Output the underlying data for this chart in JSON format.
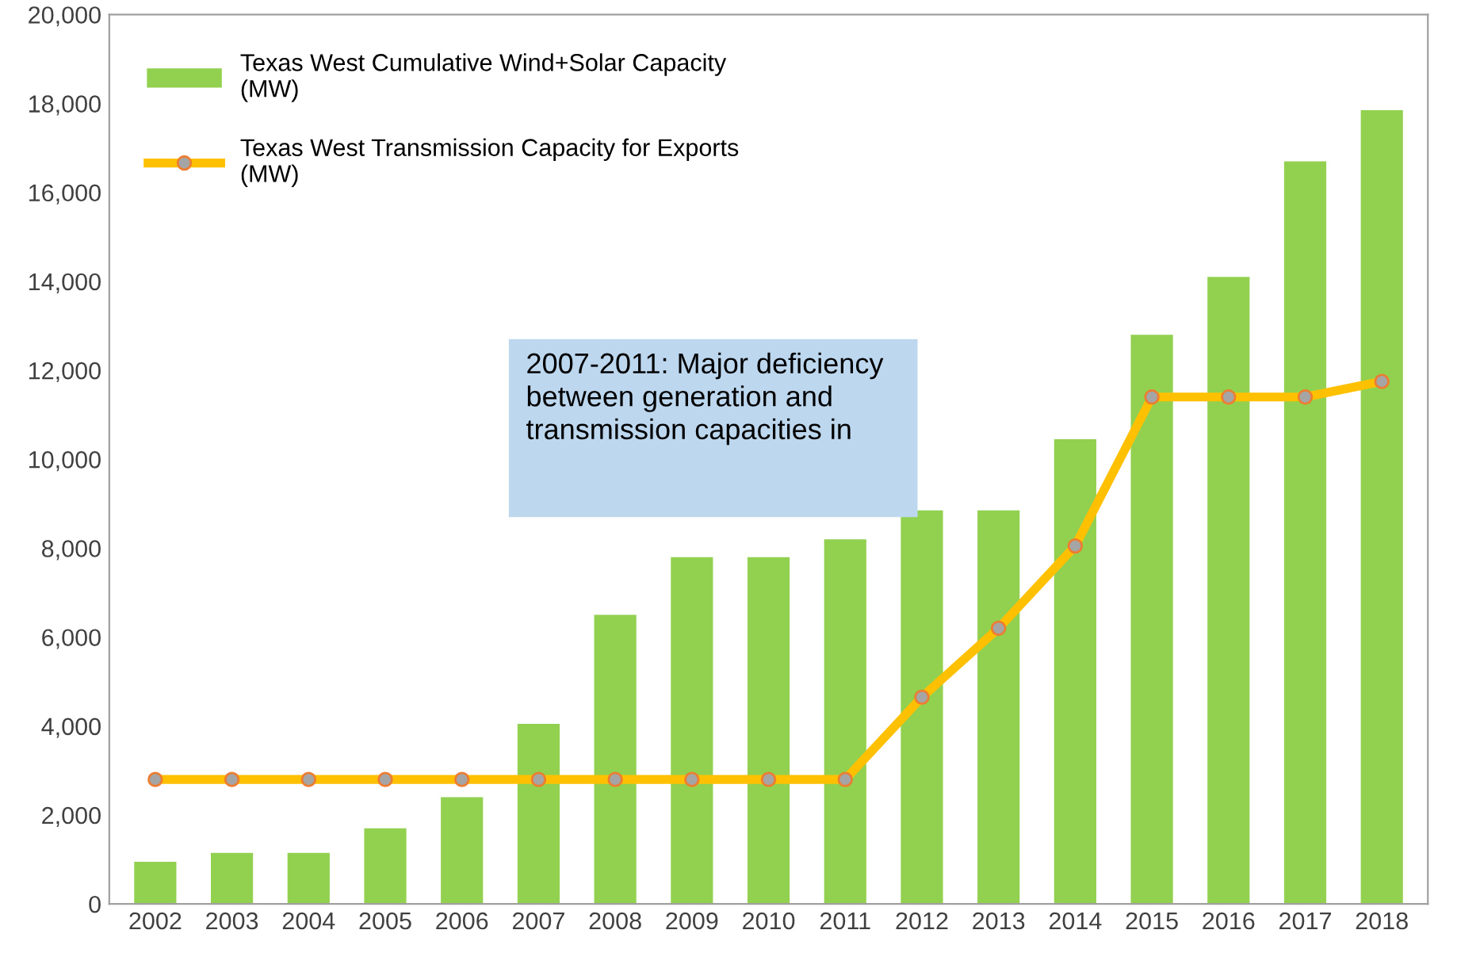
{
  "chart_data": {
    "type": "bar",
    "categories": [
      "2002",
      "2003",
      "2004",
      "2005",
      "2006",
      "2007",
      "2008",
      "2009",
      "2010",
      "2011",
      "2012",
      "2013",
      "2014",
      "2015",
      "2016",
      "2017",
      "2018"
    ],
    "series": [
      {
        "name": "Texas West Cumulative Wind+Solar Capacity (MW)",
        "color": "#92d050",
        "values": [
          950,
          1150,
          1150,
          1700,
          2400,
          4050,
          6500,
          7800,
          7800,
          8200,
          8850,
          8850,
          10450,
          12800,
          14100,
          16700,
          17850
        ]
      },
      {
        "name": "Texas West Transmission Capacity for Exports (MW)",
        "type": "line",
        "color": "#ffc000",
        "marker": "circle",
        "values": [
          2800,
          2800,
          2800,
          2800,
          2800,
          2800,
          2800,
          2800,
          2800,
          2800,
          4650,
          6200,
          8050,
          11400,
          11400,
          11400,
          11750
        ]
      }
    ],
    "ylim": [
      0,
      20000
    ],
    "yticks": [
      {
        "value": 0,
        "label": "0"
      },
      {
        "value": 2000,
        "label": "2,000"
      },
      {
        "value": 4000,
        "label": "4,000"
      },
      {
        "value": 6000,
        "label": "6,000"
      },
      {
        "value": 8000,
        "label": "8,000"
      },
      {
        "value": 10000,
        "label": "10,000"
      },
      {
        "value": 12000,
        "label": "12,000"
      },
      {
        "value": 14000,
        "label": "14,000"
      },
      {
        "value": 16000,
        "label": "16,000"
      },
      {
        "value": 18000,
        "label": "18,000"
      },
      {
        "value": 20000,
        "label": "20,000"
      }
    ],
    "annotations": [
      "2007-2011: Major deficiency between generation and transmission capacities in"
    ],
    "legend": "top left",
    "grid": false
  }
}
